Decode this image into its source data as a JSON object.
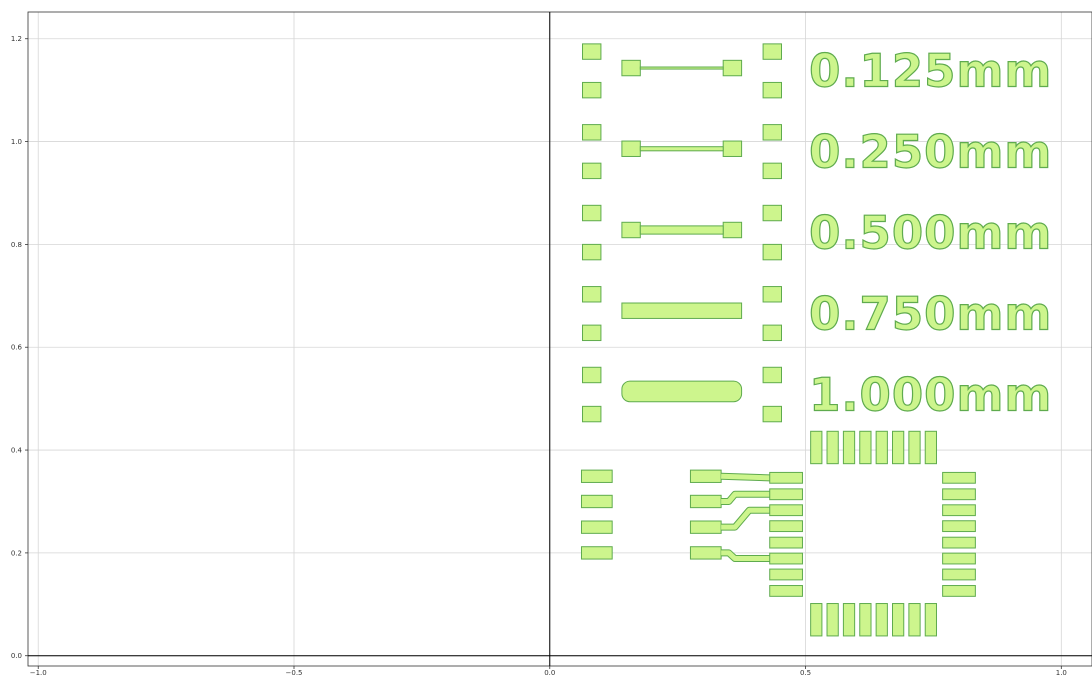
{
  "chart_data": {
    "type": "diagram",
    "title": "",
    "xlabel": "",
    "ylabel": "",
    "xlim": [
      -1.02,
      1.06
    ],
    "ylim": [
      -0.02,
      1.252
    ],
    "grid": true,
    "x_ticks": [
      {
        "value": -1.0,
        "label": "−1.0"
      },
      {
        "value": -0.5,
        "label": "−0.5"
      },
      {
        "value": 0.0,
        "label": "0.0"
      },
      {
        "value": 0.5,
        "label": "0.5"
      },
      {
        "value": 1.0,
        "label": "1.0"
      }
    ],
    "y_ticks": [
      {
        "value": 0.0,
        "label": "0.0"
      },
      {
        "value": 0.2,
        "label": "0.2"
      },
      {
        "value": 0.4,
        "label": "0.4"
      },
      {
        "value": 0.6,
        "label": "0.6"
      },
      {
        "value": 0.8,
        "label": "0.8"
      },
      {
        "value": 1.0,
        "label": "1.0"
      },
      {
        "value": 1.2,
        "label": "1.2"
      }
    ],
    "colors": {
      "fill": "#cdf58d",
      "stroke": "#5fab4e",
      "grid": "#d6d6d6",
      "axis": "#000000"
    },
    "width_labels": [
      {
        "text": "0.125mm",
        "x": 0.507,
        "y": 1.138
      },
      {
        "text": "0.250mm",
        "x": 0.507,
        "y": 0.981
      },
      {
        "text": "0.500mm",
        "x": 0.507,
        "y": 0.823
      },
      {
        "text": "0.750mm",
        "x": 0.507,
        "y": 0.666
      },
      {
        "text": "1.000mm",
        "x": 0.507,
        "y": 0.508
      }
    ],
    "test_rows": [
      {
        "y": 1.143,
        "trace_width": 0.004,
        "pad_top_y": 1.175,
        "pad_bottom_y": 1.1
      },
      {
        "y": 0.986,
        "trace_width": 0.008,
        "pad_top_y": 1.018,
        "pad_bottom_y": 0.943
      },
      {
        "y": 0.828,
        "trace_width": 0.016,
        "pad_top_y": 0.861,
        "pad_bottom_y": 0.785
      },
      {
        "y": 0.671,
        "trace_width": 0.024,
        "pad_top_y": 0.703,
        "pad_bottom_y": 0.628
      },
      {
        "y": 0.514,
        "trace_width": 0.032,
        "pad_top_y": 0.546,
        "pad_bottom_y": 0.47
      }
    ],
    "small_pads": {
      "w": 0.036,
      "h": 0.03,
      "left_x": 0.082,
      "right_x": 0.435
    },
    "end_pads": {
      "w": 0.036,
      "h": 0.03,
      "left_x": 0.159,
      "right_x": 0.357,
      "trace_from": 0.177,
      "trace_to": 0.339
    },
    "row_end_pad_height": {
      "last": 0.04
    },
    "left_pads": [
      {
        "x": 0.092,
        "y": 0.349,
        "w": 0.06,
        "h": 0.024
      },
      {
        "x": 0.092,
        "y": 0.3,
        "w": 0.06,
        "h": 0.024
      },
      {
        "x": 0.092,
        "y": 0.25,
        "w": 0.06,
        "h": 0.024
      },
      {
        "x": 0.092,
        "y": 0.2,
        "w": 0.06,
        "h": 0.024
      }
    ],
    "mid_pads": [
      {
        "x": 0.305,
        "y": 0.349,
        "w": 0.06,
        "h": 0.024
      },
      {
        "x": 0.305,
        "y": 0.3,
        "w": 0.06,
        "h": 0.024
      },
      {
        "x": 0.305,
        "y": 0.25,
        "w": 0.06,
        "h": 0.024
      },
      {
        "x": 0.305,
        "y": 0.2,
        "w": 0.06,
        "h": 0.024
      }
    ],
    "qfn": {
      "left_pads_x": 0.462,
      "right_pads_x": 0.8,
      "side_pad_w": 0.064,
      "side_pad_h": 0.021,
      "side_ys": [
        0.346,
        0.314,
        0.283,
        0.252,
        0.22,
        0.189,
        0.158,
        0.126
      ],
      "top_pads_y": 0.405,
      "bottom_pads_y": 0.07,
      "tb_pad_w": 0.022,
      "tb_pad_h": 0.063,
      "tb_xs": [
        0.521,
        0.553,
        0.585,
        0.617,
        0.649,
        0.681,
        0.713,
        0.745
      ]
    },
    "fanout_traces": [
      {
        "points": [
          [
            0.335,
            0.349
          ],
          [
            0.43,
            0.346
          ]
        ]
      },
      {
        "points": [
          [
            0.335,
            0.3
          ],
          [
            0.35,
            0.3
          ],
          [
            0.362,
            0.314
          ],
          [
            0.43,
            0.314
          ]
        ]
      },
      {
        "points": [
          [
            0.335,
            0.25
          ],
          [
            0.362,
            0.25
          ],
          [
            0.39,
            0.283
          ],
          [
            0.43,
            0.283
          ]
        ]
      },
      {
        "points": [
          [
            0.335,
            0.2
          ],
          [
            0.35,
            0.2
          ],
          [
            0.362,
            0.189
          ],
          [
            0.43,
            0.189
          ]
        ]
      }
    ]
  }
}
